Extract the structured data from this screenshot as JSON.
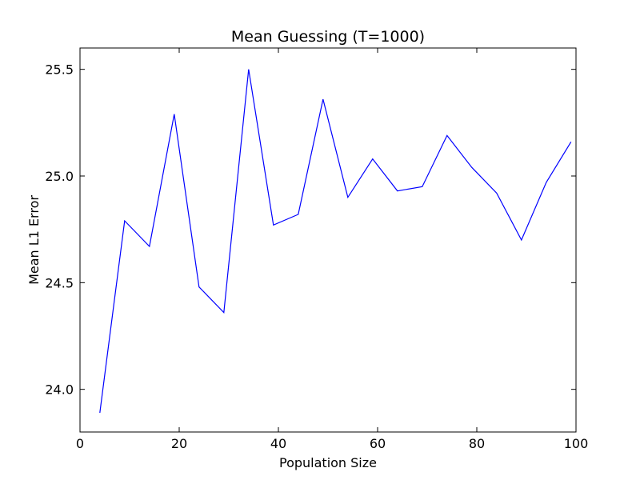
{
  "chart_data": {
    "type": "line",
    "title": "Mean Guessing (T=1000)",
    "xlabel": "Population Size",
    "ylabel": "Mean L1 Error",
    "xlim": [
      0,
      100
    ],
    "ylim": [
      23.8,
      25.6
    ],
    "xticks": [
      0,
      20,
      40,
      60,
      80,
      100
    ],
    "xtick_labels": [
      "0",
      "20",
      "40",
      "60",
      "80",
      "100"
    ],
    "yticks": [
      24.0,
      24.5,
      25.0,
      25.5
    ],
    "ytick_labels": [
      "24.0",
      "24.5",
      "25.0",
      "25.5"
    ],
    "grid": false,
    "line_color": "#0000ff",
    "series": [
      {
        "x": [
          4,
          9,
          14,
          19,
          24,
          29,
          34,
          39,
          44,
          49,
          54,
          59,
          64,
          69,
          74,
          79,
          84,
          89,
          94,
          99
        ],
        "y": [
          23.89,
          24.79,
          24.67,
          25.29,
          24.48,
          24.36,
          25.5,
          24.77,
          24.82,
          25.36,
          24.9,
          25.08,
          24.93,
          24.95,
          25.19,
          25.04,
          24.92,
          24.7,
          24.97,
          25.16
        ]
      }
    ]
  }
}
